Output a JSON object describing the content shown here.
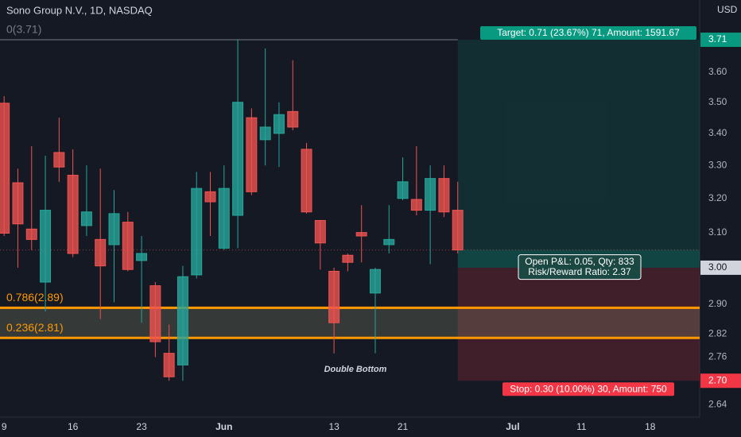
{
  "header": {
    "title": "Sono Group N.V., 1D, NASDAQ",
    "currency": "USD"
  },
  "chart_data": {
    "type": "candlestick",
    "log_scale": true,
    "ylim": [
      2.61,
      3.85
    ],
    "xlim": [
      -0.3,
      50.6
    ],
    "yticks": [
      {
        "value": 3.6,
        "label": "3.60"
      },
      {
        "value": 3.5,
        "label": "3.50"
      },
      {
        "value": 3.4,
        "label": "3.40"
      },
      {
        "value": 3.3,
        "label": "3.30"
      },
      {
        "value": 3.2,
        "label": "3.20"
      },
      {
        "value": 3.1,
        "label": "3.10"
      },
      {
        "value": 2.9,
        "label": "2.90"
      },
      2.82,
      2.76,
      2.64
    ],
    "xticks": [
      {
        "value": 0,
        "label": "9"
      },
      {
        "value": 5,
        "label": "16"
      },
      {
        "value": 10,
        "label": "23"
      },
      {
        "value": 16,
        "label": "Jun"
      },
      {
        "value": 24,
        "label": "13"
      },
      {
        "value": 29,
        "label": "21"
      },
      {
        "value": 37,
        "label": "Jul"
      },
      {
        "value": 42,
        "label": "11"
      },
      {
        "value": 47,
        "label": "18"
      }
    ],
    "up_color": "#26a69a",
    "down_color": "#ef5350",
    "candles": {
      "open": [
        3.497,
        3.247,
        3.11,
        2.96,
        3.34,
        3.27,
        3.12,
        3.08,
        3.065,
        3.13,
        3.02,
        2.95,
        2.77,
        2.74,
        2.98,
        3.22,
        3.055,
        3.15,
        3.45,
        3.38,
        3.4,
        3.47,
        3.35,
        3.135,
        2.99,
        3.035,
        3.1,
        2.93,
        3.065,
        3.2,
        3.197,
        3.165,
        3.26,
        3.165
      ],
      "high": [
        3.52,
        3.29,
        3.36,
        3.33,
        3.45,
        3.35,
        3.3,
        3.29,
        3.225,
        3.16,
        3.09,
        2.96,
        2.845,
        3.005,
        3.28,
        3.28,
        3.3,
        3.71,
        3.48,
        3.68,
        3.5,
        3.64,
        3.37,
        3.135,
        3.0,
        3.04,
        3.18,
        3.0,
        3.18,
        3.325,
        3.36,
        3.3,
        3.3,
        3.25
      ],
      "low": [
        3.09,
        3.0,
        3.05,
        2.88,
        3.25,
        3.03,
        3.09,
        2.86,
        2.905,
        2.99,
        2.85,
        2.76,
        2.7,
        2.7,
        2.97,
        3.09,
        3.05,
        3.055,
        3.21,
        3.3,
        3.295,
        3.41,
        3.155,
        2.995,
        2.77,
        2.99,
        3.015,
        2.77,
        3.04,
        3.195,
        3.15,
        3.01,
        3.145,
        3.04
      ],
      "close": [
        3.098,
        3.125,
        3.08,
        3.165,
        3.295,
        3.04,
        3.16,
        3.005,
        3.155,
        2.995,
        3.04,
        2.8,
        2.71,
        2.975,
        3.23,
        3.19,
        3.23,
        3.5,
        3.22,
        3.42,
        3.46,
        3.42,
        3.16,
        3.07,
        2.85,
        3.015,
        3.09,
        2.995,
        3.08,
        3.25,
        3.165,
        3.26,
        3.16,
        3.05
      ]
    },
    "last_price": 3.05,
    "fibonacci": [
      {
        "label": "0(3.71)",
        "value": 3.71,
        "color": "#787b86"
      },
      {
        "label": "0.786(2.89)",
        "value": 2.89,
        "color": "#ff9800"
      },
      {
        "label": "0.236(2.81)",
        "value": 2.81,
        "color": "#ff9800"
      }
    ],
    "position": {
      "target": 3.71,
      "entry": {
        "value": 3,
        "label": "3.00"
      },
      "stop": {
        "value": 2.7,
        "label": "2.70"
      },
      "target_label": "Target: 0.71 (23.67%) 71, Amount: 1591.67",
      "stop_label": "Stop: 0.30 (10.00%) 30, Amount: 750",
      "pnl_label": [
        "Open P&L: 0.05, Qty: 833",
        "Risk/Reward Ratio: 2.37"
      ],
      "target_color": "#089981",
      "stop_color": "#f23645"
    },
    "annotation": "Double Bottom"
  }
}
